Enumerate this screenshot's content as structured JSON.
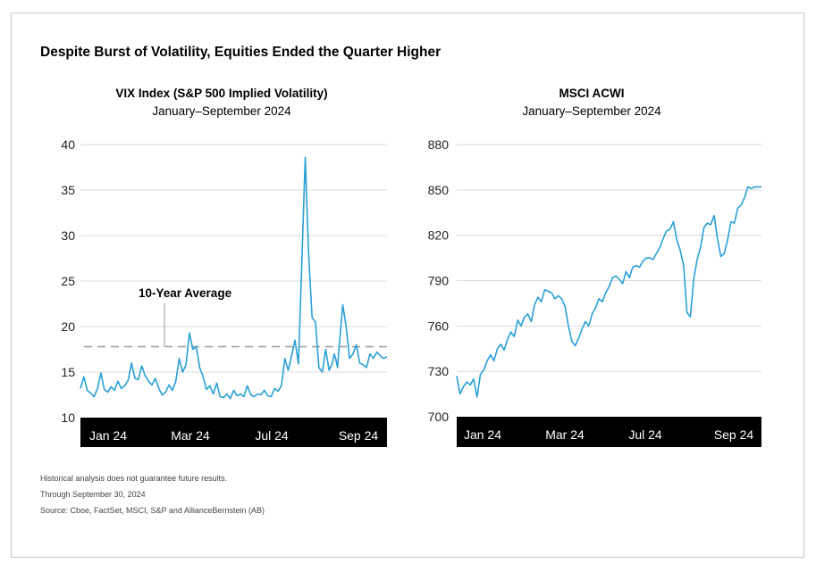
{
  "title": "Despite Burst of Volatility, Equities Ended the Quarter Higher",
  "notes": [
    "Historical analysis does not guarantee future results.",
    "Through September 30, 2024",
    "Source: Cboe, FactSet, MSCI, S&P and AllianceBernstein (AB)"
  ],
  "colors": {
    "line": "#2a9fd6",
    "axis_band": "#000000",
    "grid": "#d9d9d9",
    "reference": "#9a9a9a"
  },
  "chart_data": [
    {
      "type": "line",
      "title": "VIX Index (S&P 500 Implied Volatility)",
      "subtitle": "January–September 2024",
      "x_tick_labels": [
        "Jan 24",
        "Mar 24",
        "Jul 24",
        "Sep 24"
      ],
      "y_ticks": [
        "10",
        "15",
        "20",
        "25",
        "30",
        "35",
        "40"
      ],
      "ylim": [
        10,
        40
      ],
      "xlim": [
        0,
        9
      ],
      "grid": true,
      "reference_line": {
        "label": "10-Year Average",
        "value": 17.8
      },
      "series": [
        {
          "x": [
            0,
            0.1,
            0.2,
            0.3,
            0.4,
            0.5,
            0.6,
            0.7,
            0.8,
            0.9,
            1.0,
            1.1,
            1.2,
            1.3,
            1.4,
            1.5,
            1.6,
            1.7,
            1.8,
            1.9,
            2.0,
            2.1,
            2.2,
            2.3,
            2.4,
            2.5,
            2.6,
            2.7,
            2.8,
            2.9,
            3.0,
            3.1,
            3.2,
            3.3,
            3.4,
            3.5,
            3.6,
            3.7,
            3.8,
            3.9,
            4.0,
            4.1,
            4.2,
            4.3,
            4.4,
            4.5,
            4.6,
            4.7,
            4.8,
            4.9,
            5.0,
            5.1,
            5.2,
            5.3,
            5.4,
            5.5,
            5.6,
            5.7,
            5.8,
            5.9,
            6.0,
            6.1,
            6.2,
            6.3,
            6.4,
            6.5,
            6.6,
            6.7,
            6.8,
            6.9,
            7.0,
            7.1,
            7.2,
            7.3,
            7.4,
            7.45,
            7.5,
            7.55,
            7.6,
            7.7,
            7.8,
            7.9,
            8.0,
            8.1,
            8.2,
            8.3,
            8.4,
            8.5,
            8.6,
            8.7,
            8.8,
            8.9,
            9.0
          ],
          "values": [
            13.2,
            14.5,
            13.0,
            12.7,
            12.3,
            13.2,
            14.9,
            13.1,
            12.8,
            13.4,
            13.0,
            14.0,
            13.2,
            13.5,
            14.1,
            16.0,
            14.3,
            14.2,
            15.7,
            14.6,
            14.0,
            13.6,
            14.3,
            13.2,
            12.5,
            12.8,
            13.6,
            13.0,
            14.0,
            16.5,
            15.0,
            15.8,
            19.3,
            17.5,
            17.8,
            15.5,
            14.5,
            13.1,
            13.5,
            12.6,
            13.8,
            12.3,
            12.2,
            12.6,
            12.1,
            13.0,
            12.4,
            12.6,
            12.3,
            13.5,
            12.5,
            12.3,
            12.6,
            12.5,
            13.0,
            12.4,
            12.3,
            13.2,
            12.9,
            13.5,
            16.5,
            15.2,
            16.8,
            18.5,
            15.9,
            27.0,
            38.6,
            28.0,
            21.0,
            20.5,
            15.5,
            15.0,
            17.5,
            15.2,
            16.0,
            17.0,
            16.4,
            15.5,
            18.0,
            22.4,
            20.0,
            16.5,
            17.0,
            18.0,
            16.0,
            15.8,
            15.5,
            17.0,
            16.5,
            17.2,
            16.8,
            16.5,
            16.7
          ]
        }
      ]
    },
    {
      "type": "line",
      "title": "MSCI ACWI",
      "subtitle": "January–September 2024",
      "x_tick_labels": [
        "Jan 24",
        "Mar 24",
        "Jul 24",
        "Sep 24"
      ],
      "y_ticks": [
        "700",
        "730",
        "760",
        "790",
        "820",
        "850",
        "880"
      ],
      "ylim": [
        700,
        880
      ],
      "xlim": [
        0,
        9
      ],
      "grid": true,
      "series": [
        {
          "x": [
            0,
            0.1,
            0.2,
            0.3,
            0.4,
            0.5,
            0.6,
            0.7,
            0.8,
            0.9,
            1.0,
            1.1,
            1.2,
            1.3,
            1.4,
            1.5,
            1.6,
            1.7,
            1.8,
            1.9,
            2.0,
            2.1,
            2.2,
            2.3,
            2.4,
            2.5,
            2.6,
            2.7,
            2.8,
            2.9,
            3.0,
            3.1,
            3.2,
            3.3,
            3.4,
            3.5,
            3.6,
            3.7,
            3.8,
            3.9,
            4.0,
            4.1,
            4.2,
            4.3,
            4.4,
            4.5,
            4.6,
            4.7,
            4.8,
            4.9,
            5.0,
            5.1,
            5.2,
            5.3,
            5.4,
            5.5,
            5.6,
            5.7,
            5.8,
            5.9,
            6.0,
            6.1,
            6.2,
            6.3,
            6.4,
            6.5,
            6.6,
            6.7,
            6.8,
            6.9,
            7.0,
            7.1,
            7.2,
            7.3,
            7.4,
            7.5,
            7.6,
            7.7,
            7.8,
            7.9,
            8.0,
            8.1,
            8.2,
            8.3,
            8.4,
            8.5,
            8.6,
            8.7,
            8.8,
            8.9,
            9.0
          ],
          "values": [
            727,
            715,
            720,
            723,
            721,
            725,
            713,
            728,
            731,
            737,
            741,
            737,
            745,
            748,
            744,
            751,
            756,
            753,
            764,
            760,
            766,
            768,
            763,
            774,
            779,
            776,
            784,
            783,
            782,
            778,
            780,
            778,
            773,
            760,
            750,
            747,
            752,
            758,
            763,
            760,
            768,
            772,
            778,
            776,
            782,
            786,
            792,
            793,
            791,
            788,
            796,
            792,
            799,
            800,
            799,
            803,
            805,
            805,
            804,
            808,
            812,
            818,
            823,
            824,
            829,
            817,
            810,
            800,
            769,
            766,
            791,
            804,
            812,
            825,
            828,
            827,
            833,
            818,
            806,
            808,
            817,
            829,
            828,
            838,
            840,
            845,
            852,
            851,
            852,
            852,
            852
          ]
        }
      ]
    }
  ]
}
